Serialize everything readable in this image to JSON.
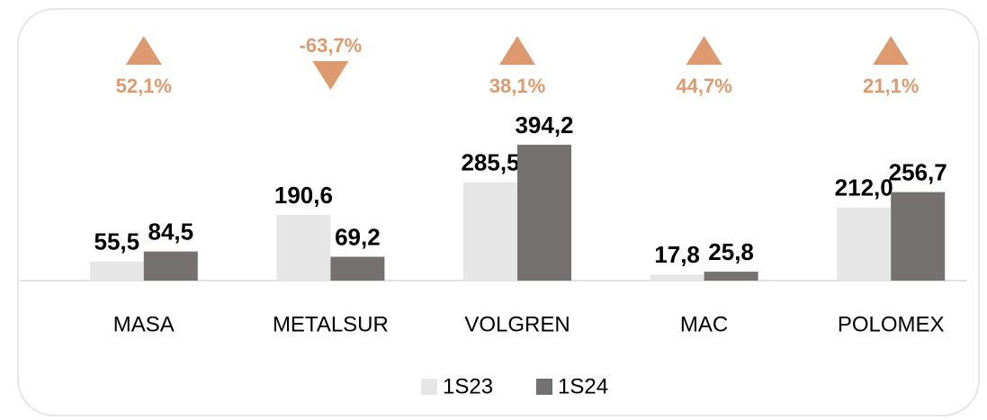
{
  "chart_data": {
    "type": "bar",
    "categories": [
      "MASA",
      "METALSUR",
      "VOLGREN",
      "MAC",
      "POLOMEX"
    ],
    "series": [
      {
        "name": "1S23",
        "color": "#e7e6e6",
        "values": [
          55.5,
          190.6,
          285.5,
          17.8,
          212.0
        ],
        "value_labels": [
          "55,5",
          "190,6",
          "285,5",
          "17,8",
          "212,0"
        ]
      },
      {
        "name": "1S24",
        "color": "#767171",
        "values": [
          84.5,
          69.2,
          394.2,
          25.8,
          256.7
        ],
        "value_labels": [
          "84,5",
          "69,2",
          "394,2",
          "25,8",
          "256,7"
        ]
      }
    ],
    "changes": [
      52.1,
      -63.7,
      38.1,
      44.7,
      21.1
    ],
    "change_labels": [
      "52,1%",
      "-63,7%",
      "38,1%",
      "44,7%",
      "21,1%"
    ],
    "change_color": "#dd9a6f",
    "ylim": [
      0,
      420
    ],
    "legend": "bottom"
  }
}
